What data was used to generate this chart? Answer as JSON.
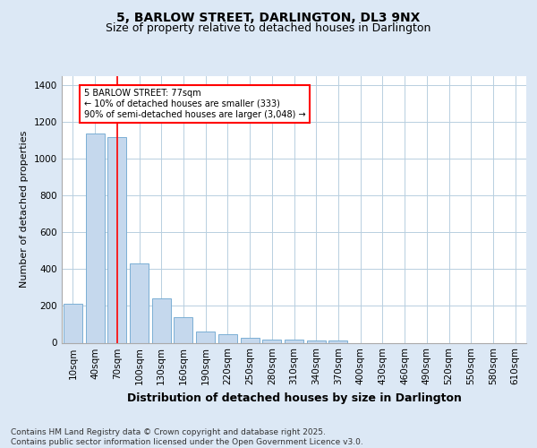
{
  "title1": "5, BARLOW STREET, DARLINGTON, DL3 9NX",
  "title2": "Size of property relative to detached houses in Darlington",
  "xlabel": "Distribution of detached houses by size in Darlington",
  "ylabel": "Number of detached properties",
  "categories": [
    "10sqm",
    "40sqm",
    "70sqm",
    "100sqm",
    "130sqm",
    "160sqm",
    "190sqm",
    "220sqm",
    "250sqm",
    "280sqm",
    "310sqm",
    "340sqm",
    "370sqm",
    "400sqm",
    "430sqm",
    "460sqm",
    "490sqm",
    "520sqm",
    "550sqm",
    "580sqm",
    "610sqm"
  ],
  "values": [
    210,
    1140,
    1120,
    430,
    240,
    140,
    60,
    45,
    25,
    15,
    15,
    10,
    10,
    0,
    0,
    0,
    0,
    0,
    0,
    0,
    0
  ],
  "bar_color": "#c5d8ed",
  "bar_edgecolor": "#7bafd4",
  "red_line_x": 2,
  "annotation_text": "5 BARLOW STREET: 77sqm\n← 10% of detached houses are smaller (333)\n90% of semi-detached houses are larger (3,048) →",
  "annotation_box_facecolor": "white",
  "annotation_box_edgecolor": "red",
  "ylim": [
    0,
    1450
  ],
  "yticks": [
    0,
    200,
    400,
    600,
    800,
    1000,
    1200,
    1400
  ],
  "footnote": "Contains HM Land Registry data © Crown copyright and database right 2025.\nContains public sector information licensed under the Open Government Licence v3.0.",
  "bg_color": "#dce8f5",
  "plot_bg_color": "#ffffff",
  "grid_color": "#b8cfe0",
  "title1_fontsize": 10,
  "title2_fontsize": 9,
  "xlabel_fontsize": 9,
  "ylabel_fontsize": 8,
  "tick_fontsize": 7.5,
  "footnote_fontsize": 6.5
}
